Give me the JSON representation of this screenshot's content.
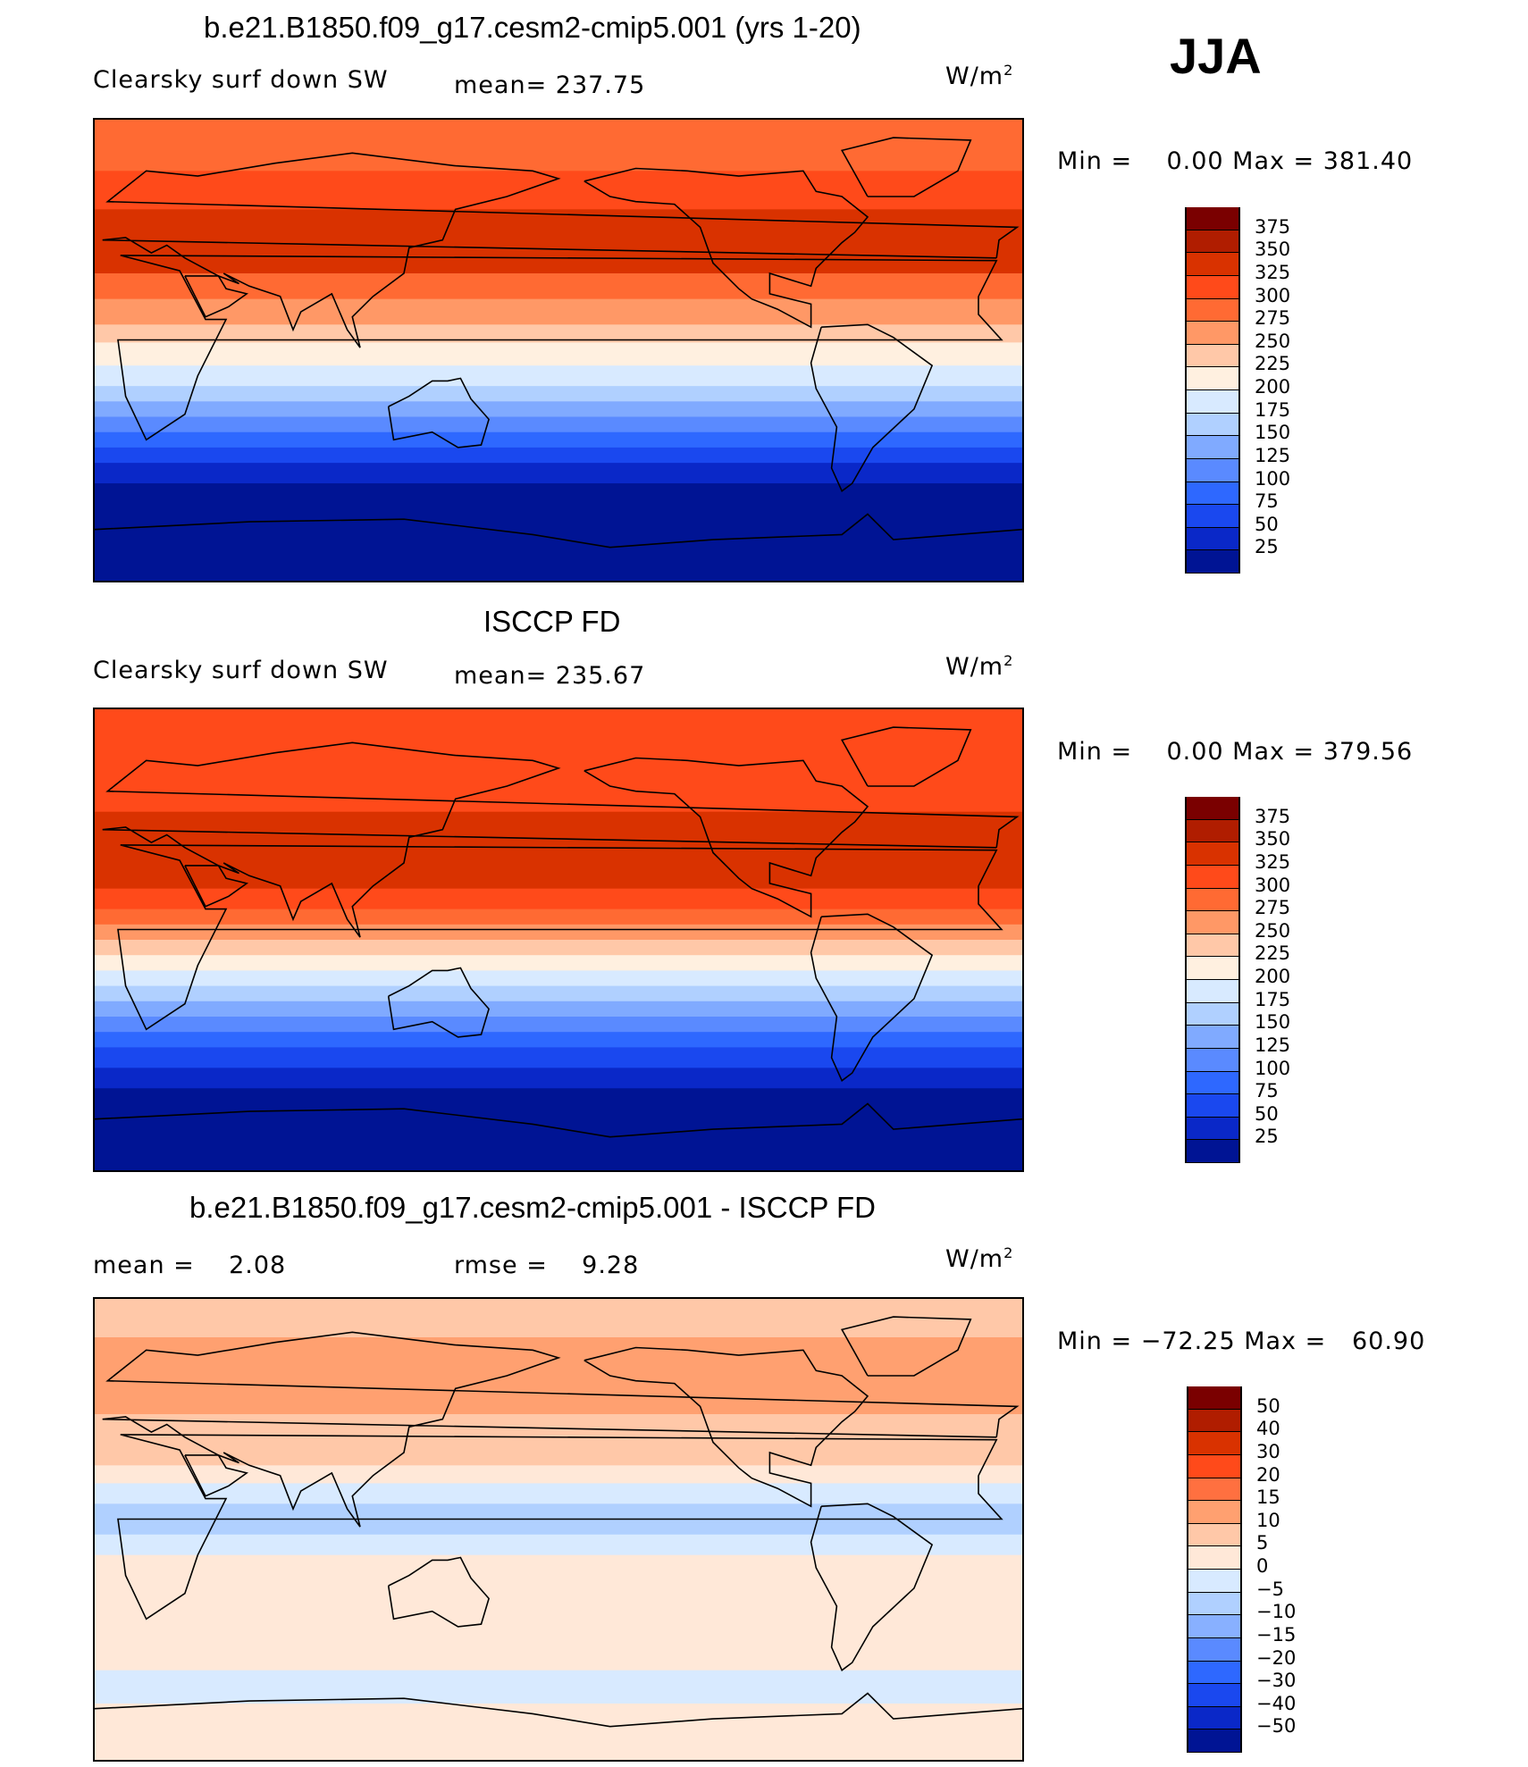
{
  "season": "JJA",
  "chart_data": [
    {
      "type": "heatmap",
      "title": "b.e21.B1850.f09_g17.cesm2-cmip5.001 (yrs 1-20)",
      "left_label": "Clearsky surf down SW",
      "center_label": "mean= 237.75",
      "units_base": "W/m",
      "units_exp": "2",
      "minmax": "Min =    0.00 Max = 381.40",
      "levels": [
        "375",
        "350",
        "325",
        "300",
        "275",
        "250",
        "225",
        "200",
        "175",
        "150",
        "125",
        "100",
        "75",
        "50",
        "25"
      ],
      "colors": [
        "#7a0000",
        "#b01d00",
        "#d93200",
        "#ff4a1a",
        "#ff6a33",
        "#ff9866",
        "#ffc8a8",
        "#fff0e0",
        "#d8eaff",
        "#b0d0ff",
        "#80aaff",
        "#5a8aff",
        "#2e68ff",
        "#1a48ef",
        "#0a28c8",
        "#001494"
      ],
      "zonal_bands": [
        {
          "lat_top": 90,
          "lat_bottom": 70,
          "color_index": 4
        },
        {
          "lat_top": 70,
          "lat_bottom": 55,
          "color_index": 3
        },
        {
          "lat_top": 55,
          "lat_bottom": 30,
          "color_index": 2
        },
        {
          "lat_top": 30,
          "lat_bottom": 20,
          "color_index": 4
        },
        {
          "lat_top": 20,
          "lat_bottom": 10,
          "color_index": 5
        },
        {
          "lat_top": 10,
          "lat_bottom": 3,
          "color_index": 6
        },
        {
          "lat_top": 3,
          "lat_bottom": -6,
          "color_index": 7
        },
        {
          "lat_top": -6,
          "lat_bottom": -14,
          "color_index": 8
        },
        {
          "lat_top": -14,
          "lat_bottom": -20,
          "color_index": 9
        },
        {
          "lat_top": -20,
          "lat_bottom": -26,
          "color_index": 10
        },
        {
          "lat_top": -26,
          "lat_bottom": -32,
          "color_index": 11
        },
        {
          "lat_top": -32,
          "lat_bottom": -38,
          "color_index": 12
        },
        {
          "lat_top": -38,
          "lat_bottom": -44,
          "color_index": 13
        },
        {
          "lat_top": -44,
          "lat_bottom": -52,
          "color_index": 14
        },
        {
          "lat_top": -52,
          "lat_bottom": -90,
          "color_index": 15
        }
      ]
    },
    {
      "type": "heatmap",
      "title": "ISCCP FD",
      "left_label": "Clearsky surf down SW",
      "center_label": "mean= 235.67",
      "units_base": "W/m",
      "units_exp": "2",
      "minmax": "Min =    0.00 Max = 379.56",
      "levels": [
        "375",
        "350",
        "325",
        "300",
        "275",
        "250",
        "225",
        "200",
        "175",
        "150",
        "125",
        "100",
        "75",
        "50",
        "25"
      ],
      "colors": [
        "#7a0000",
        "#b01d00",
        "#d93200",
        "#ff4a1a",
        "#ff6a33",
        "#ff9866",
        "#ffc8a8",
        "#fff0e0",
        "#d8eaff",
        "#b0d0ff",
        "#80aaff",
        "#5a8aff",
        "#2e68ff",
        "#1a48ef",
        "#0a28c8",
        "#001494"
      ],
      "zonal_bands": [
        {
          "lat_top": 90,
          "lat_bottom": 65,
          "color_index": 3
        },
        {
          "lat_top": 65,
          "lat_bottom": 50,
          "color_index": 3
        },
        {
          "lat_top": 50,
          "lat_bottom": 20,
          "color_index": 2
        },
        {
          "lat_top": 20,
          "lat_bottom": 12,
          "color_index": 3
        },
        {
          "lat_top": 12,
          "lat_bottom": 6,
          "color_index": 4
        },
        {
          "lat_top": 6,
          "lat_bottom": 0,
          "color_index": 5
        },
        {
          "lat_top": 0,
          "lat_bottom": -6,
          "color_index": 6
        },
        {
          "lat_top": -6,
          "lat_bottom": -12,
          "color_index": 7
        },
        {
          "lat_top": -12,
          "lat_bottom": -18,
          "color_index": 8
        },
        {
          "lat_top": -18,
          "lat_bottom": -24,
          "color_index": 9
        },
        {
          "lat_top": -24,
          "lat_bottom": -30,
          "color_index": 10
        },
        {
          "lat_top": -30,
          "lat_bottom": -36,
          "color_index": 11
        },
        {
          "lat_top": -36,
          "lat_bottom": -42,
          "color_index": 12
        },
        {
          "lat_top": -42,
          "lat_bottom": -50,
          "color_index": 13
        },
        {
          "lat_top": -50,
          "lat_bottom": -58,
          "color_index": 14
        },
        {
          "lat_top": -58,
          "lat_bottom": -90,
          "color_index": 15
        }
      ]
    },
    {
      "type": "heatmap",
      "title": "b.e21.B1850.f09_g17.cesm2-cmip5.001 - ISCCP FD",
      "left_label": "mean =    2.08",
      "center_label": "rmse =    9.28",
      "units_base": "W/m",
      "units_exp": "2",
      "minmax": "Min = −72.25 Max =   60.90",
      "levels": [
        "50",
        "40",
        "30",
        "20",
        "15",
        "10",
        "5",
        "0",
        "−5",
        "−10",
        "−15",
        "−20",
        "−30",
        "−40",
        "−50"
      ],
      "colors": [
        "#7a0000",
        "#b01d00",
        "#d93200",
        "#ff4a1a",
        "#ff7040",
        "#ffa070",
        "#ffc8a8",
        "#ffe8d8",
        "#d8eaff",
        "#b0d0ff",
        "#88b0ff",
        "#5a8aff",
        "#2e68ff",
        "#1a48ef",
        "#0a28c8",
        "#001494"
      ],
      "zonal_bands": [
        {
          "lat_top": 90,
          "lat_bottom": 75,
          "color_index": 6
        },
        {
          "lat_top": 75,
          "lat_bottom": 45,
          "color_index": 5
        },
        {
          "lat_top": 45,
          "lat_bottom": 25,
          "color_index": 6
        },
        {
          "lat_top": 25,
          "lat_bottom": 18,
          "color_index": 7
        },
        {
          "lat_top": 18,
          "lat_bottom": 10,
          "color_index": 8
        },
        {
          "lat_top": 10,
          "lat_bottom": -2,
          "color_index": 9
        },
        {
          "lat_top": -2,
          "lat_bottom": -10,
          "color_index": 8
        },
        {
          "lat_top": -10,
          "lat_bottom": -25,
          "color_index": 7
        },
        {
          "lat_top": -25,
          "lat_bottom": -55,
          "color_index": 7
        },
        {
          "lat_top": -55,
          "lat_bottom": -68,
          "color_index": 8
        },
        {
          "lat_top": -68,
          "lat_bottom": -90,
          "color_index": 7
        }
      ]
    }
  ]
}
